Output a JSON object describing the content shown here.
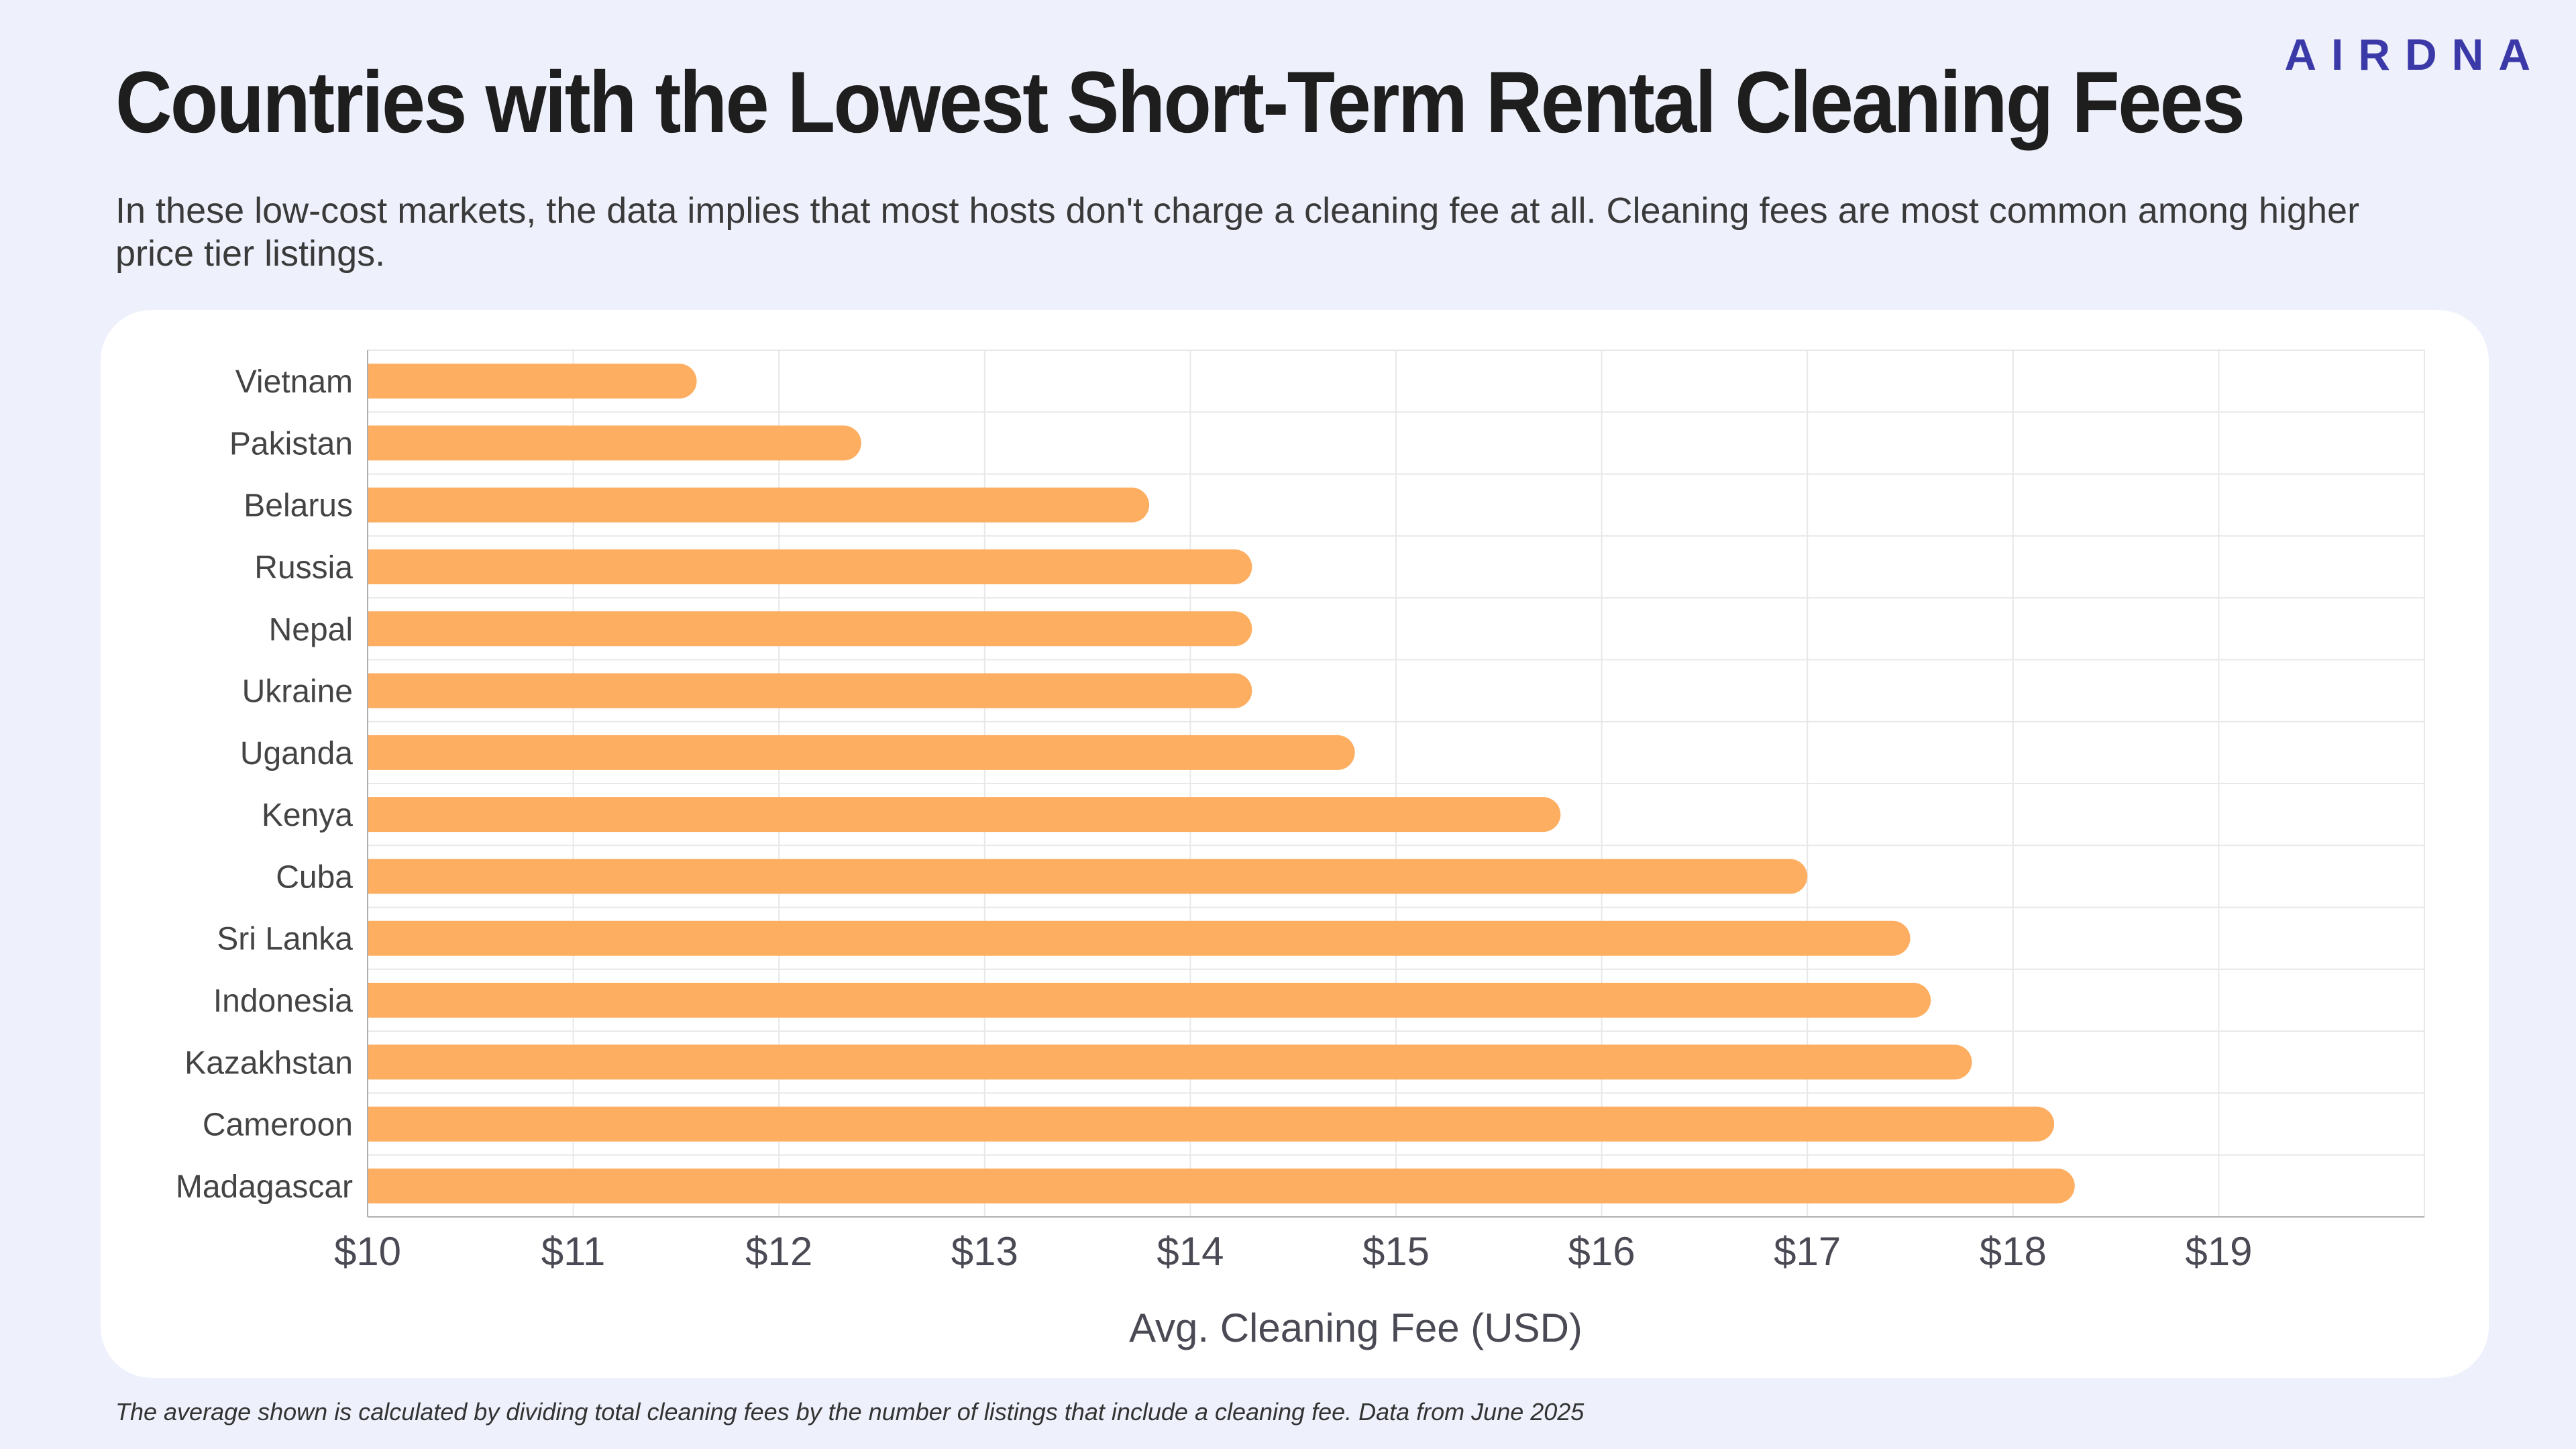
{
  "header": {
    "title": "Countries with the Lowest Short-Term Rental Cleaning Fees",
    "subtitle": "In these low-cost markets, the data implies that most hosts don't charge a cleaning fee at all. Cleaning fees are most common among higher price tier listings.",
    "logo": "AIRDNA"
  },
  "footnote": "The average shown is calculated by dividing total cleaning fees by the number of listings that include a cleaning fee. Data from June 2025",
  "colors": {
    "bar": "#fdae61",
    "background": "#eef0fb",
    "card": "#ffffff",
    "grid": "#e8e8e8",
    "axis": "#b0b0b0",
    "logo": "#3b39a8"
  },
  "chart_data": {
    "type": "bar",
    "orientation": "horizontal",
    "categories": [
      "Vietnam",
      "Pakistan",
      "Belarus",
      "Russia",
      "Nepal",
      "Ukraine",
      "Uganda",
      "Kenya",
      "Cuba",
      "Sri Lanka",
      "Indonesia",
      "Kazakhstan",
      "Cameroon",
      "Madagascar"
    ],
    "values": [
      11.6,
      12.4,
      13.8,
      14.3,
      14.3,
      14.3,
      14.8,
      15.8,
      17.0,
      17.5,
      17.6,
      17.8,
      18.2,
      18.3
    ],
    "xlabel": "Avg. Cleaning Fee (USD)",
    "ylabel": "",
    "xlim": [
      10,
      20
    ],
    "x_ticks": [
      10,
      11,
      12,
      13,
      14,
      15,
      16,
      17,
      18,
      19
    ],
    "x_tick_labels": [
      "$10",
      "$11",
      "$12",
      "$13",
      "$14",
      "$15",
      "$16",
      "$17",
      "$18",
      "$19"
    ],
    "grid": true,
    "legend": "none"
  }
}
